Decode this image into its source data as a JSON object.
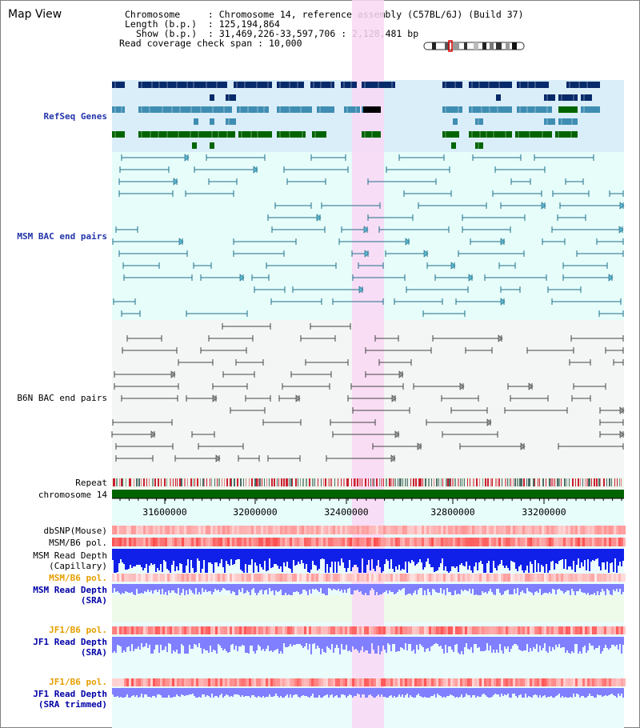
{
  "title": "Map View",
  "info": {
    "chromosome_key": "Chromosome",
    "chromosome_val": "Chromosome 14, reference assembly (C57BL/6J) (Build 37)",
    "length_key": "Length (b.p.)",
    "length_val": "125,194,864",
    "show_key": "Show (b.p.)",
    "show_val": "31,469,226-33,597,706 : 2,128,481 bp",
    "span_key": "Read coverage check span",
    "span_val": "10,000"
  },
  "tracks": {
    "refseq": "RefSeq Genes",
    "msm_bac": "MSM BAC end pairs",
    "b6n_bac": "B6N BAC end pairs",
    "repeat": "Repeat",
    "chromosome": "chromosome 14",
    "dbsnp": "dbSNP(Mouse)",
    "msm_b6_pol_1": "MSM/B6 pol.",
    "msm_depth_cap_1": "MSM Read Depth",
    "msm_depth_cap_2": "(Capillary)",
    "msm_b6_pol_2": "MSM/B6 pol.",
    "msm_depth_sra_1": "MSM Read Depth",
    "msm_depth_sra_2": "(SRA)",
    "jf1_b6_pol_1": "JF1/B6 pol.",
    "jf1_depth_1": "JF1 Read Depth",
    "jf1_depth_2": "(SRA)",
    "jf1_b6_pol_2": "JF1/B6 pol.",
    "jf1_trim_1": "JF1 Read Depth",
    "jf1_trim_2": "(SRA trimmed)"
  },
  "axis_ticks": [
    "31600000",
    "32000000",
    "32400000",
    "32800000",
    "33200000"
  ],
  "colors": {
    "refseq_bg": "#daeefa",
    "msm_bg": "#e6fdfa",
    "b6n_bg": "#f4f6f6",
    "highlight": "#f9d8f4",
    "gene_navy": "#072a6a",
    "gene_steel": "#3f8db2",
    "gene_green": "#006400",
    "msm_line": "#1f6e8a",
    "b6n_line": "#444444",
    "chromosome_green": "#006400",
    "depth_blue": "#1020e8",
    "depth_light": "#7f7fff"
  }
}
